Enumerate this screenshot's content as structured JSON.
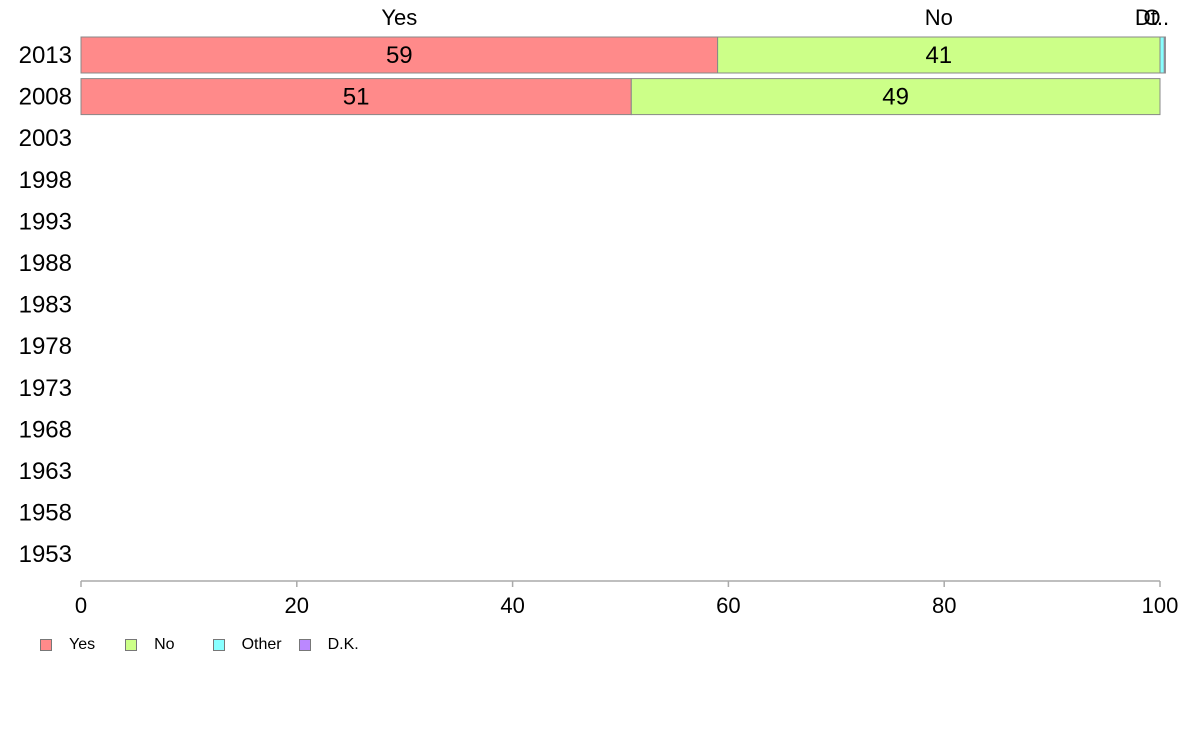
{
  "chart_data": {
    "type": "bar",
    "orientation": "horizontal",
    "stacked": true,
    "categories": [
      "2013",
      "2008",
      "2003",
      "1998",
      "1993",
      "1988",
      "1983",
      "1978",
      "1973",
      "1968",
      "1963",
      "1958",
      "1953"
    ],
    "series": [
      {
        "name": "Yes",
        "color": "#ff8a8a",
        "values": [
          59,
          51,
          null,
          null,
          null,
          null,
          null,
          null,
          null,
          null,
          null,
          null,
          null
        ]
      },
      {
        "name": "No",
        "color": "#ccff88",
        "values": [
          41,
          49,
          null,
          null,
          null,
          null,
          null,
          null,
          null,
          null,
          null,
          null,
          null
        ]
      },
      {
        "name": "Other",
        "color": "#88ffff",
        "values": [
          0.4,
          0,
          null,
          null,
          null,
          null,
          null,
          null,
          null,
          null,
          null,
          null,
          null
        ]
      },
      {
        "name": "D.K.",
        "color": "#bb88ff",
        "values": [
          0.1,
          0,
          null,
          null,
          null,
          null,
          null,
          null,
          null,
          null,
          null,
          null,
          null
        ]
      }
    ],
    "data_labels": [
      {
        "category": "2013",
        "labels": [
          "59",
          "41"
        ]
      },
      {
        "category": "2008",
        "labels": [
          "51",
          "49"
        ]
      }
    ],
    "top_labels": [
      "Yes",
      "No",
      "O",
      "Dt.."
    ],
    "xlim": [
      0,
      100
    ],
    "xticks": [
      0,
      20,
      40,
      60,
      80,
      100
    ],
    "grid": false,
    "legend_position": "bottom-left"
  },
  "legend": {
    "items": [
      {
        "label": "Yes",
        "color": "#ff8a8a"
      },
      {
        "label": "No",
        "color": "#ccff88"
      },
      {
        "label": "Other",
        "color": "#88ffff"
      },
      {
        "label": "D.K.",
        "color": "#bb88ff"
      }
    ]
  }
}
